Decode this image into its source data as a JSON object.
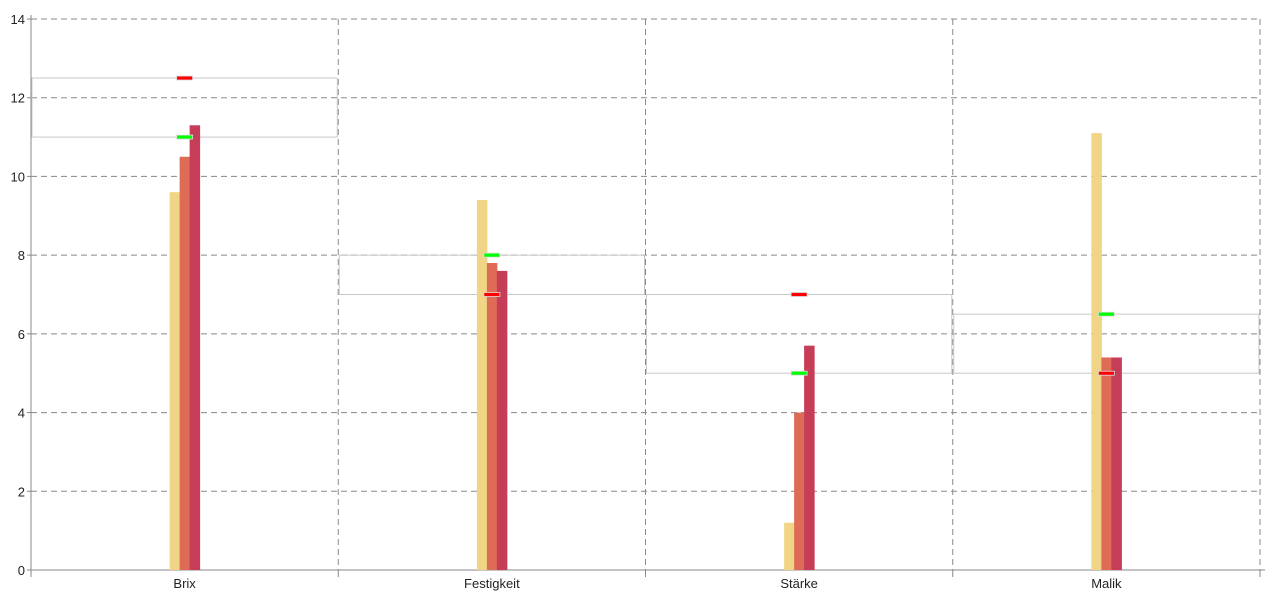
{
  "chart_data": {
    "type": "bar",
    "title": "",
    "xlabel": "",
    "ylabel": "",
    "ylim": [
      0,
      14
    ],
    "yticks": [
      0,
      2,
      4,
      6,
      8,
      10,
      12,
      14
    ],
    "grid": true,
    "categories": [
      "Brix",
      "Festigkeit",
      "Stärke",
      "Malik"
    ],
    "series": [
      {
        "values": [
          9.6,
          9.4,
          1.2,
          11.1
        ],
        "color": "#efd585"
      },
      {
        "values": [
          10.5,
          7.8,
          4.0,
          5.4
        ],
        "color": "#de6b55"
      },
      {
        "values": [
          11.3,
          7.6,
          5.7,
          5.4
        ],
        "color": "#c63d58"
      }
    ],
    "ranges": [
      {
        "low": 11,
        "high": 12.5,
        "low_color": "#00ff00",
        "high_color": "#ff0000"
      },
      {
        "low": 7,
        "high": 8,
        "low_color": "#ff0000",
        "high_color": "#00ff00"
      },
      {
        "low": 5,
        "high": 7,
        "low_color": "#00ff00",
        "high_color": "#ff0000"
      },
      {
        "low": 5,
        "high": 6.5,
        "low_color": "#ff0000",
        "high_color": "#00ff00"
      }
    ]
  }
}
